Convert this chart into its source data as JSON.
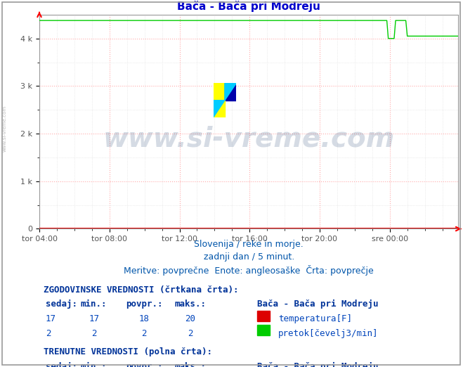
{
  "title": "Bača - Bača pri Modreju",
  "title_color": "#0000cc",
  "background_color": "#ffffff",
  "plot_bg_color": "#ffffff",
  "grid_color_major": "#ffaaaa",
  "grid_color_minor": "#dddddd",
  "xlim": [
    0,
    287
  ],
  "ylim": [
    0,
    4500
  ],
  "yticks": [
    0,
    1000,
    2000,
    3000,
    4000
  ],
  "ytick_labels": [
    "0",
    "1 k",
    "2 k",
    "3 k",
    "4 k"
  ],
  "xtick_positions": [
    0,
    48,
    96,
    144,
    192,
    240
  ],
  "xtick_labels": [
    "tor 04:00",
    "tor 08:00",
    "tor 12:00",
    "tor 16:00",
    "tor 20:00",
    "sre 00:00"
  ],
  "temp_color": "#dd0000",
  "flow_color": "#00cc00",
  "temp_hist_color": "#dd0000",
  "flow_hist_color": "#00cc00",
  "temp_solid": 18,
  "flow_base": 4378,
  "n_points": 288,
  "watermark_text": "www.si-vreme.com",
  "watermark_color": "#1a3a6b",
  "watermark_alpha": 0.18,
  "watermark_fontsize": 28,
  "subtitle1": "Slovenija / reke in morje.",
  "subtitle2": "zadnji dan / 5 minut.",
  "subtitle3": "Meritve: povprečne  Enote: angleosaške  Črta: povprečje",
  "subtitle_color": "#0055aa",
  "subtitle_fontsize": 9,
  "table_header_color": "#003399",
  "table_value_color": "#0044bb",
  "table_fontsize": 9,
  "border_color": "#888888",
  "left_watermark": "www.si-vreme.com",
  "left_watermark_color": "#aaaaaa"
}
